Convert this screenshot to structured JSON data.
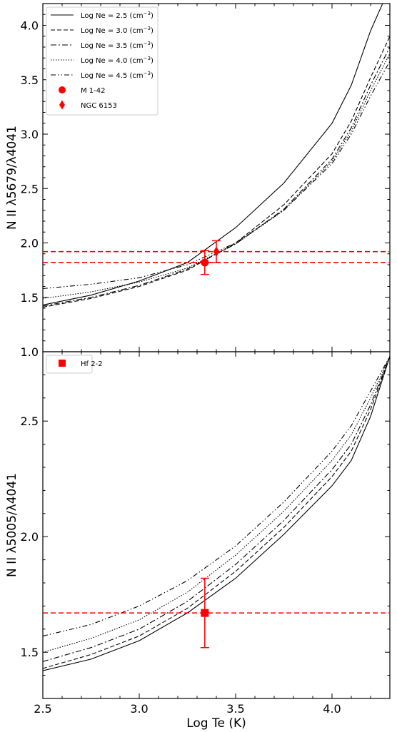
{
  "chart_data": [
    {
      "type": "line",
      "panel": "top",
      "xlabel": "",
      "ylabel": "N II λ5679/λ4041",
      "xlim": [
        2.5,
        4.3
      ],
      "ylim": [
        1.0,
        4.2
      ],
      "yticks": [
        "1.0",
        "1.5",
        "2.0",
        "2.5",
        "3.0",
        "3.5",
        "4.0"
      ],
      "legend_position": "top-left",
      "x": [
        2.5,
        2.75,
        3.0,
        3.25,
        3.5,
        3.75,
        4.0,
        4.1,
        4.2,
        4.3
      ],
      "series": [
        {
          "name": "Log Ne = 2.5 (cm",
          "name_sup": "−3",
          "name_end": ")",
          "dash": "solid",
          "values": [
            1.43,
            1.52,
            1.65,
            1.82,
            2.14,
            2.55,
            3.1,
            3.45,
            3.95,
            4.35
          ]
        },
        {
          "name": "Log Ne = 3.0 (cm",
          "name_sup": "−3",
          "name_end": ")",
          "dash": "dashed",
          "values": [
            1.41,
            1.49,
            1.6,
            1.75,
            2.0,
            2.35,
            2.82,
            3.12,
            3.52,
            3.9
          ]
        },
        {
          "name": "Log Ne = 3.5 (cm",
          "name_sup": "−3",
          "name_end": ")",
          "dash": "dashdot",
          "values": [
            1.42,
            1.5,
            1.61,
            1.76,
            1.99,
            2.31,
            2.77,
            3.06,
            3.45,
            3.8
          ]
        },
        {
          "name": "Log Ne = 4.0 (cm",
          "name_sup": "−3",
          "name_end": ")",
          "dash": "dotted",
          "values": [
            1.49,
            1.55,
            1.64,
            1.77,
            1.99,
            2.3,
            2.75,
            3.03,
            3.4,
            3.74
          ]
        },
        {
          "name": "Log Ne = 4.5 (cm",
          "name_sup": "−3",
          "name_end": ")",
          "dash": "dashdotdot",
          "values": [
            1.58,
            1.62,
            1.68,
            1.8,
            2.0,
            2.3,
            2.73,
            3.0,
            3.35,
            3.67
          ]
        }
      ],
      "hlines": [
        1.92,
        1.82
      ],
      "points": [
        {
          "name": "M 1-42",
          "marker": "circle",
          "x": 3.34,
          "y": 1.82,
          "yerr": 0.11
        },
        {
          "name": "NGC 6153",
          "marker": "diamond",
          "x": 3.4,
          "y": 1.92,
          "yerr": 0.1
        }
      ]
    },
    {
      "type": "line",
      "panel": "bottom",
      "xlabel": "Log Te (K)",
      "ylabel": "N II λ5005/λ4041",
      "xlim": [
        2.5,
        4.3
      ],
      "ylim": [
        1.3,
        2.8
      ],
      "xticks": [
        "2.5",
        "3.0",
        "3.5",
        "4.0"
      ],
      "yticks": [
        "1.5",
        "2.0",
        "2.5"
      ],
      "legend_position": "top-left",
      "x": [
        2.5,
        2.75,
        3.0,
        3.25,
        3.5,
        3.75,
        4.0,
        4.1,
        4.2,
        4.3
      ],
      "series": [
        {
          "name": "Log Ne = 2.5",
          "dash": "solid",
          "values": [
            1.42,
            1.47,
            1.55,
            1.67,
            1.82,
            2.01,
            2.22,
            2.33,
            2.52,
            2.78
          ]
        },
        {
          "name": "Log Ne = 3.0",
          "dash": "dashed",
          "values": [
            1.43,
            1.49,
            1.57,
            1.69,
            1.85,
            2.04,
            2.26,
            2.37,
            2.55,
            2.78
          ]
        },
        {
          "name": "Log Ne = 3.5",
          "dash": "dashdot",
          "values": [
            1.46,
            1.52,
            1.6,
            1.72,
            1.88,
            2.07,
            2.29,
            2.4,
            2.57,
            2.78
          ]
        },
        {
          "name": "Log Ne = 4.0",
          "dash": "dotted",
          "values": [
            1.5,
            1.56,
            1.64,
            1.76,
            1.92,
            2.11,
            2.33,
            2.44,
            2.6,
            2.78
          ]
        },
        {
          "name": "Log Ne = 4.5",
          "dash": "dashdotdot",
          "values": [
            1.57,
            1.62,
            1.7,
            1.81,
            1.96,
            2.15,
            2.37,
            2.48,
            2.63,
            2.78
          ]
        }
      ],
      "hlines": [
        1.67
      ],
      "points": [
        {
          "name": "Hf 2-2",
          "marker": "square",
          "x": 3.34,
          "y": 1.67,
          "yerr": 0.15
        }
      ]
    }
  ],
  "colors": {
    "curves": "#000000",
    "highlight": "#ff0000",
    "legend_border": "#cccccc"
  }
}
